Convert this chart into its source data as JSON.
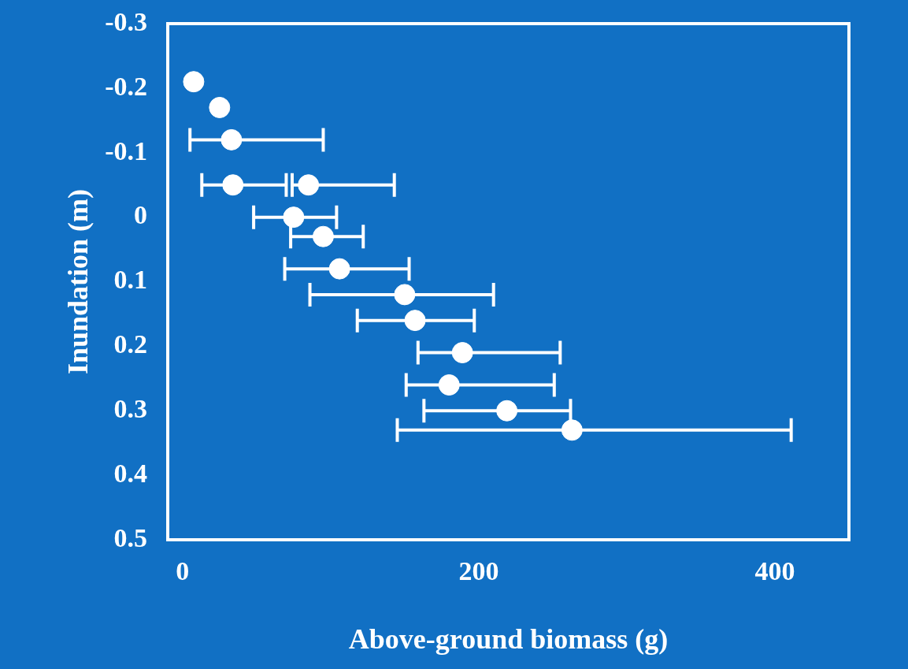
{
  "chart_data": {
    "type": "scatter",
    "xlabel": "Above-ground biomass (g)",
    "ylabel": "Inundation (m)",
    "x": [
      7.5,
      25,
      33,
      34,
      85,
      75,
      95,
      106,
      150,
      157,
      189,
      180,
      219,
      263
    ],
    "series": [
      {
        "color": "#ffffff",
        "values": [
          -0.21,
          -0.17,
          -0.12,
          -0.05,
          -0.05,
          0,
          0.03,
          0.08,
          0.12,
          0.16,
          0.21,
          0.26,
          0.3,
          0.33
        ],
        "xerrors": [
          null,
          null,
          [
            5,
            95
          ],
          [
            13,
            70
          ],
          [
            74,
            143
          ],
          [
            48,
            104
          ],
          [
            73,
            122
          ],
          [
            69,
            153
          ],
          [
            86,
            210
          ],
          [
            118,
            197
          ],
          [
            159,
            255
          ],
          [
            151,
            251
          ],
          [
            163,
            262
          ],
          [
            145,
            411
          ]
        ]
      }
    ],
    "xlim": [
      -10,
      450
    ],
    "xticks": [
      0,
      200,
      400
    ],
    "ylim": [
      0.5,
      -0.3
    ],
    "yticks": [
      -0.3,
      -0.2,
      -0.1,
      0,
      0.1,
      0.2,
      0.3,
      0.4,
      0.5
    ],
    "marker": "circle",
    "grid": false,
    "legend": false
  }
}
